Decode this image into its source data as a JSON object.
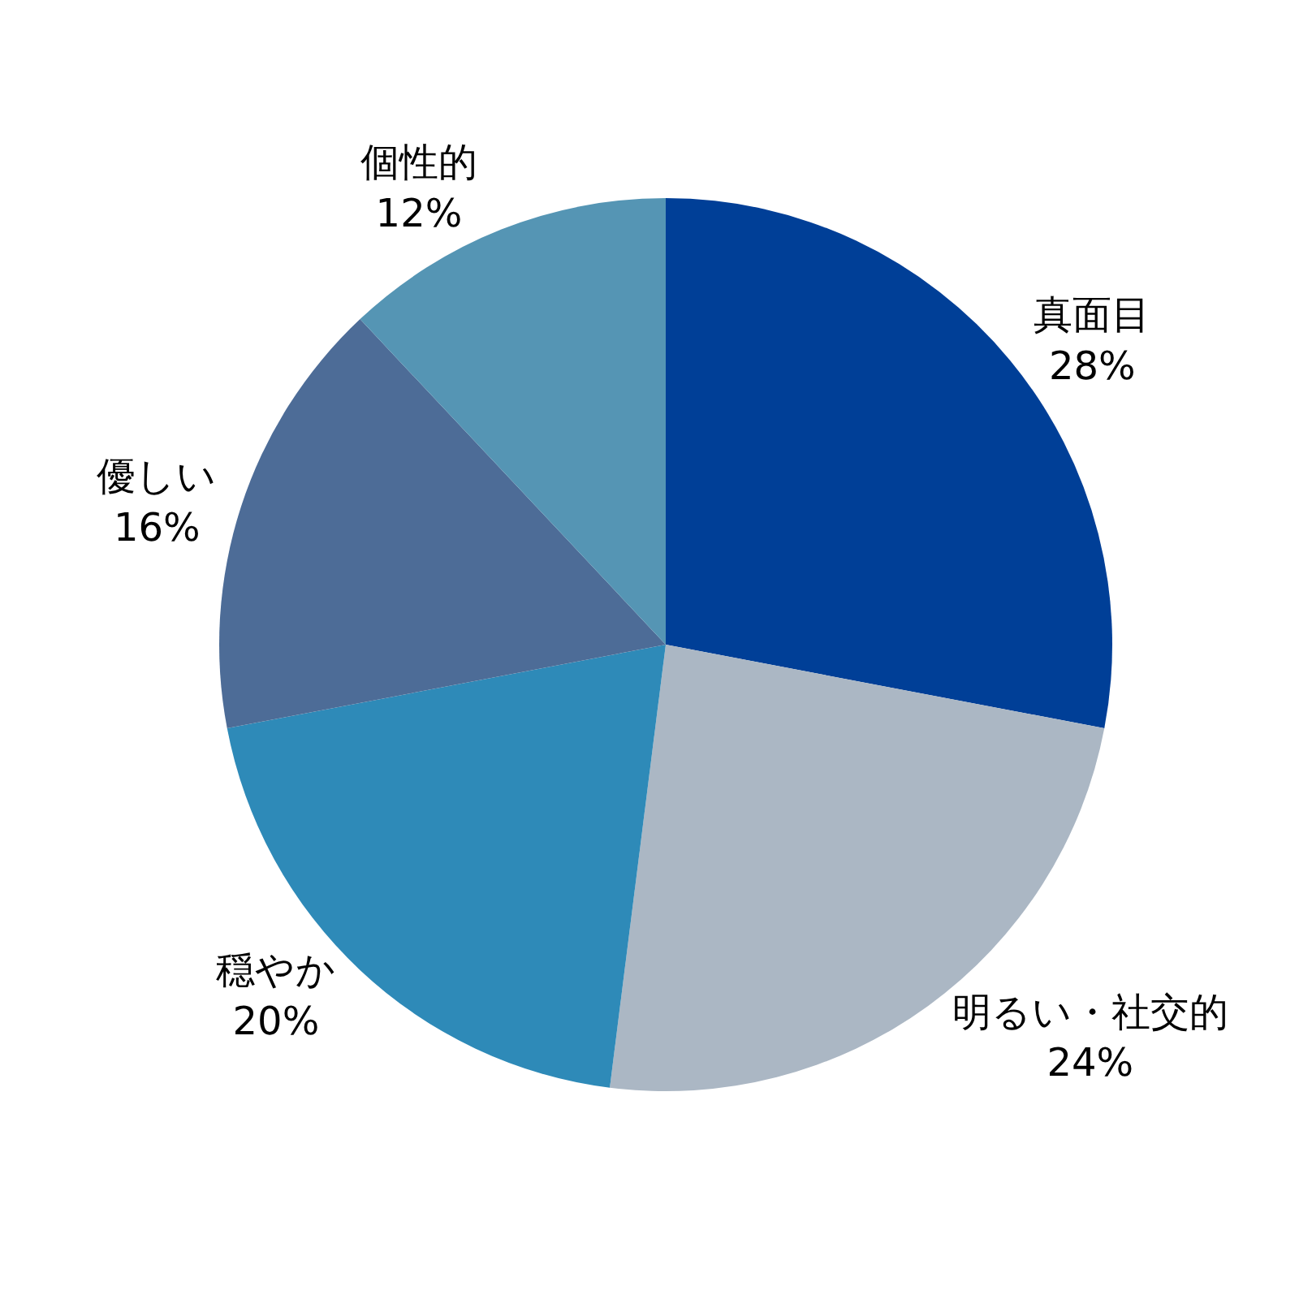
{
  "chart_data": {
    "type": "pie",
    "categories": [
      "真面目",
      "明るい・社交的",
      "穏やか",
      "優しい",
      "個性的"
    ],
    "values": [
      28,
      24,
      20,
      16,
      12
    ],
    "value_labels": [
      "28%",
      "24%",
      "20%",
      "16%",
      "12%"
    ],
    "colors": [
      "#003f97",
      "#abb7c4",
      "#2e8ab8",
      "#4d6c97",
      "#5595b4"
    ],
    "legend": false
  }
}
